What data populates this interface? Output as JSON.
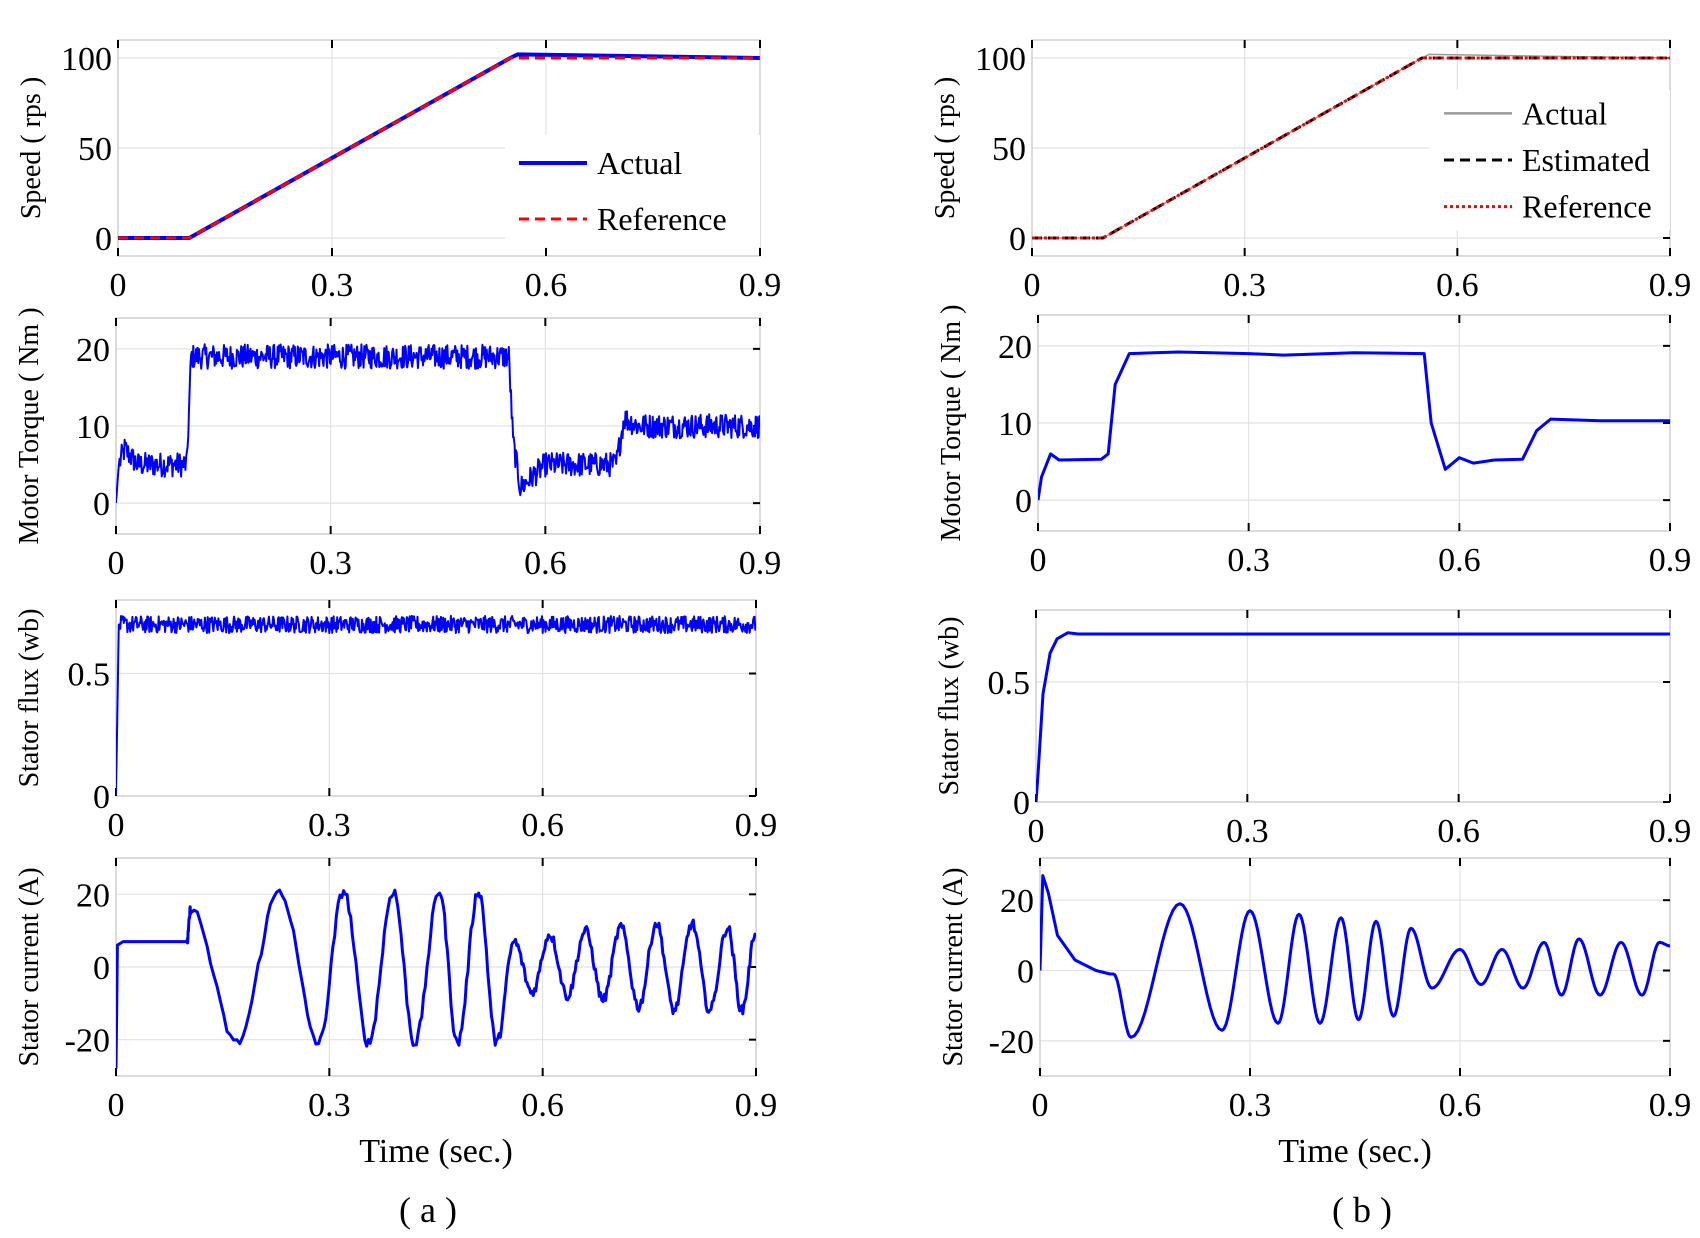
{
  "chart_data": [
    {
      "type": "line",
      "id": "a-speed",
      "column": "a",
      "ylabel": "Speed  ( rps )",
      "xlabel": "",
      "xlim": [
        0,
        0.9
      ],
      "ylim": [
        -10,
        110
      ],
      "xticks": [
        0,
        0.3,
        0.6,
        0.9
      ],
      "xtick_labels": [
        "0",
        "0.3",
        "0.6",
        "0.9"
      ],
      "yticks": [
        0,
        50,
        100
      ],
      "ytick_labels": [
        "0",
        "50",
        "100"
      ],
      "grid": true,
      "legend_position": "right",
      "series": [
        {
          "name": "Actual",
          "color": "#0000ff",
          "style": "solid",
          "width": 4,
          "kind": "piecewise",
          "x": [
            0,
            0.1,
            0.55,
            0.56,
            0.9
          ],
          "y": [
            0,
            0,
            100,
            102,
            100
          ]
        },
        {
          "name": "Reference",
          "color": "#ff0000",
          "style": "dashed",
          "width": 3,
          "kind": "piecewise",
          "x": [
            0,
            0.1,
            0.55,
            0.9
          ],
          "y": [
            0,
            0,
            100,
            100
          ]
        }
      ]
    },
    {
      "type": "line",
      "id": "a-torque",
      "column": "a",
      "ylabel": "Motor Torque ( Nm )",
      "xlabel": "",
      "xlim": [
        0,
        0.9
      ],
      "ylim": [
        -4,
        24
      ],
      "xticks": [
        0,
        0.3,
        0.6,
        0.9
      ],
      "xtick_labels": [
        "0",
        "0.3",
        "0.6",
        "0.9"
      ],
      "yticks": [
        0,
        10,
        20
      ],
      "ytick_labels": [
        "0",
        "10",
        "20"
      ],
      "grid": true,
      "series": [
        {
          "name": "Torque",
          "color": "#0000ff",
          "style": "solid",
          "width": 2,
          "kind": "piecewise",
          "ripple": 1.6,
          "x": [
            0,
            0.004,
            0.012,
            0.03,
            0.099,
            0.105,
            0.12,
            0.549,
            0.555,
            0.565,
            0.6,
            0.699,
            0.71,
            0.73,
            0.9
          ],
          "y": [
            0,
            5,
            7,
            5,
            5,
            19,
            19,
            19,
            8,
            2,
            5,
            5,
            11,
            10,
            10
          ]
        }
      ]
    },
    {
      "type": "line",
      "id": "a-flux",
      "column": "a",
      "ylabel": "Stator flux (wb)",
      "xlabel": "",
      "xlim": [
        0,
        0.9
      ],
      "ylim": [
        0,
        0.8
      ],
      "xticks": [
        0,
        0.3,
        0.6,
        0.9
      ],
      "xtick_labels": [
        "0",
        "0.3",
        "0.6",
        "0.9"
      ],
      "yticks": [
        0,
        0.5
      ],
      "ytick_labels": [
        "0",
        "0.5"
      ],
      "grid": true,
      "series": [
        {
          "name": "Flux",
          "color": "#0000ff",
          "style": "solid",
          "width": 2,
          "kind": "piecewise",
          "ripple": 0.035,
          "x": [
            0,
            0.002,
            0.004,
            0.9
          ],
          "y": [
            0,
            0.35,
            0.7,
            0.7
          ]
        }
      ]
    },
    {
      "type": "line",
      "id": "a-current",
      "column": "a",
      "ylabel": "Stator current (A)",
      "xlabel": "Time (sec.)",
      "xlim": [
        0,
        0.9
      ],
      "ylim": [
        -30,
        30
      ],
      "xticks": [
        0,
        0.3,
        0.6,
        0.9
      ],
      "xtick_labels": [
        "0",
        "0.3",
        "0.6",
        "0.9"
      ],
      "yticks": [
        -20,
        0,
        20
      ],
      "ytick_labels": [
        "-20",
        "0",
        "20"
      ],
      "grid": true,
      "series": [
        {
          "name": "Current",
          "color": "#0000ff",
          "style": "solid",
          "width": 3,
          "kind": "wave",
          "ripple": 1.4,
          "pre": {
            "x": [
              0,
              0.002,
              0.01,
              0.1
            ],
            "y": [
              -28,
              6,
              7,
              7
            ]
          },
          "extrema": [
            [
              0.105,
              16
            ],
            [
              0.17,
              -21
            ],
            [
              0.23,
              21
            ],
            [
              0.285,
              -21
            ],
            [
              0.32,
              21
            ],
            [
              0.355,
              -21
            ],
            [
              0.39,
              21
            ],
            [
              0.42,
              -21
            ],
            [
              0.455,
              21
            ],
            [
              0.48,
              -21
            ],
            [
              0.51,
              21
            ],
            [
              0.535,
              -21
            ],
            [
              0.56,
              7
            ],
            [
              0.585,
              -7
            ],
            [
              0.61,
              9
            ],
            [
              0.635,
              -8
            ],
            [
              0.66,
              10
            ],
            [
              0.685,
              -9
            ],
            [
              0.71,
              11
            ],
            [
              0.735,
              -11
            ],
            [
              0.76,
              12
            ],
            [
              0.785,
              -12
            ],
            [
              0.81,
              12
            ],
            [
              0.835,
              -12
            ],
            [
              0.86,
              11
            ],
            [
              0.88,
              -12
            ],
            [
              0.9,
              10
            ]
          ]
        }
      ]
    },
    {
      "type": "line",
      "id": "b-speed",
      "column": "b",
      "ylabel": "Speed  ( rps )",
      "xlabel": "",
      "xlim": [
        0,
        0.9
      ],
      "ylim": [
        -10,
        110
      ],
      "xticks": [
        0,
        0.3,
        0.6,
        0.9
      ],
      "xtick_labels": [
        "0",
        "0.3",
        "0.6",
        "0.9"
      ],
      "yticks": [
        0,
        50,
        100
      ],
      "ytick_labels": [
        "0",
        "50",
        "100"
      ],
      "grid": true,
      "legend_position": "right",
      "series": [
        {
          "name": "Actual",
          "color": "#9a9a9a",
          "style": "solid",
          "width": 1.5,
          "kind": "piecewise",
          "x": [
            0,
            0.1,
            0.55,
            0.56,
            0.9
          ],
          "y": [
            0,
            0,
            100,
            102,
            100
          ]
        },
        {
          "name": "Estimated",
          "color": "#000000",
          "style": "dashed",
          "width": 3,
          "kind": "piecewise",
          "x": [
            0,
            0.1,
            0.55,
            0.9
          ],
          "y": [
            0,
            0,
            100,
            100
          ]
        },
        {
          "name": "Reference",
          "color": "#ff0000",
          "style": "dotted",
          "width": 3,
          "kind": "piecewise",
          "x": [
            0,
            0.1,
            0.55,
            0.9
          ],
          "y": [
            0,
            0,
            100,
            100
          ]
        }
      ]
    },
    {
      "type": "line",
      "id": "b-torque",
      "column": "b",
      "ylabel": "Motor Torque ( Nm )",
      "xlabel": "",
      "xlim": [
        0,
        0.9
      ],
      "ylim": [
        -4,
        24
      ],
      "xticks": [
        0,
        0.3,
        0.6,
        0.9
      ],
      "xtick_labels": [
        "0",
        "0.3",
        "0.6",
        "0.9"
      ],
      "yticks": [
        0,
        10,
        20
      ],
      "ytick_labels": [
        "0",
        "10",
        "20"
      ],
      "grid": true,
      "series": [
        {
          "name": "Torque",
          "color": "#0000ff",
          "style": "solid",
          "width": 3,
          "kind": "piecewise",
          "x": [
            0,
            0.005,
            0.018,
            0.03,
            0.09,
            0.1,
            0.11,
            0.13,
            0.2,
            0.3,
            0.35,
            0.45,
            0.55,
            0.56,
            0.58,
            0.6,
            0.62,
            0.65,
            0.69,
            0.71,
            0.73,
            0.8,
            0.9
          ],
          "y": [
            0,
            3,
            6,
            5.2,
            5.3,
            6,
            15,
            19,
            19.2,
            19,
            18.8,
            19.1,
            19,
            10,
            4,
            5.5,
            4.8,
            5.2,
            5.3,
            9,
            10.5,
            10.3,
            10.3
          ]
        }
      ]
    },
    {
      "type": "line",
      "id": "b-flux",
      "column": "b",
      "ylabel": "Stator flux (wb)",
      "xlabel": "",
      "xlim": [
        0,
        0.9
      ],
      "ylim": [
        0,
        0.8
      ],
      "xticks": [
        0,
        0.3,
        0.6,
        0.9
      ],
      "xtick_labels": [
        "0",
        "0.3",
        "0.6",
        "0.9"
      ],
      "yticks": [
        0,
        0.5
      ],
      "ytick_labels": [
        "0",
        "0.5"
      ],
      "grid": true,
      "series": [
        {
          "name": "Flux",
          "color": "#0000ff",
          "style": "solid",
          "width": 3,
          "kind": "piecewise",
          "x": [
            0,
            0.003,
            0.01,
            0.02,
            0.03,
            0.045,
            0.06,
            0.9
          ],
          "y": [
            0,
            0.12,
            0.45,
            0.62,
            0.68,
            0.705,
            0.7,
            0.7
          ]
        }
      ]
    },
    {
      "type": "line",
      "id": "b-current",
      "column": "b",
      "ylabel": "Stator current (A)",
      "xlabel": "Time (sec.)",
      "xlim": [
        0,
        0.9
      ],
      "ylim": [
        -30,
        32
      ],
      "xticks": [
        0,
        0.3,
        0.6,
        0.9
      ],
      "xtick_labels": [
        "0",
        "0.3",
        "0.6",
        "0.9"
      ],
      "yticks": [
        -20,
        0,
        20
      ],
      "ytick_labels": [
        "-20",
        "0",
        "20"
      ],
      "grid": true,
      "series": [
        {
          "name": "Current",
          "color": "#0000ff",
          "style": "solid",
          "width": 3,
          "kind": "wave",
          "pre": {
            "x": [
              0,
              0.004,
              0.012,
              0.025,
              0.05,
              0.08,
              0.1
            ],
            "y": [
              0,
              27,
              22,
              10,
              3,
              0,
              -1
            ]
          },
          "extrema": [
            [
              0.105,
              -1
            ],
            [
              0.13,
              -19
            ],
            [
              0.2,
              19
            ],
            [
              0.26,
              -17
            ],
            [
              0.3,
              17
            ],
            [
              0.34,
              -15
            ],
            [
              0.37,
              16
            ],
            [
              0.4,
              -15
            ],
            [
              0.43,
              15
            ],
            [
              0.455,
              -14
            ],
            [
              0.48,
              14
            ],
            [
              0.505,
              -13
            ],
            [
              0.53,
              12
            ],
            [
              0.56,
              -5
            ],
            [
              0.6,
              6
            ],
            [
              0.63,
              -4
            ],
            [
              0.66,
              6
            ],
            [
              0.69,
              -5
            ],
            [
              0.72,
              8
            ],
            [
              0.745,
              -7
            ],
            [
              0.77,
              9
            ],
            [
              0.8,
              -7
            ],
            [
              0.83,
              8
            ],
            [
              0.86,
              -7
            ],
            [
              0.885,
              8
            ],
            [
              0.9,
              7
            ]
          ]
        }
      ]
    }
  ],
  "captions": {
    "a": "( a )",
    "b": "( b )"
  }
}
